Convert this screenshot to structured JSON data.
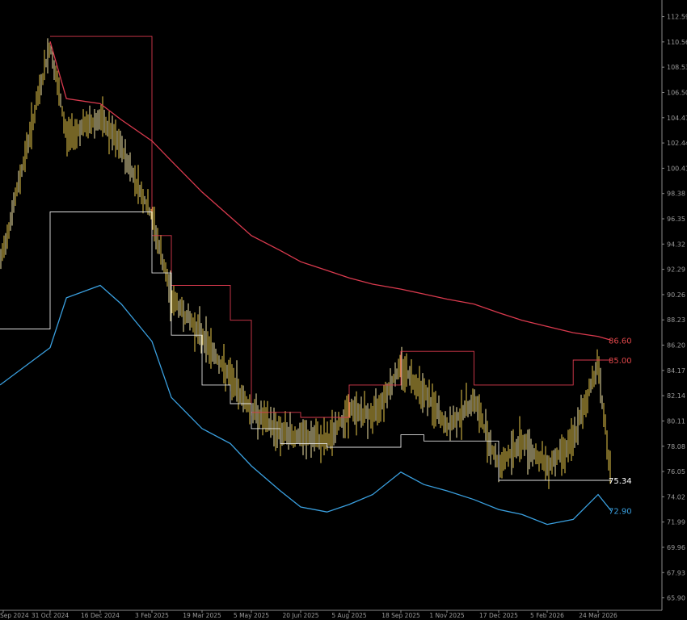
{
  "chart_data": {
    "type": "line",
    "title": "",
    "xlabel": "",
    "ylabel": "",
    "ylim": [
      64.9,
      113.6
    ],
    "grid": false,
    "y_ticks": [
      "112.59",
      "110.56",
      "108.53",
      "106.50",
      "104.47",
      "102.44",
      "100.41",
      "98.38",
      "96.35",
      "94.32",
      "92.29",
      "90.26",
      "88.23",
      "86.20",
      "84.17",
      "82.14",
      "80.11",
      "78.08",
      "76.05",
      "74.02",
      "71.99",
      "69.96",
      "67.93",
      "65.90"
    ],
    "x_ticks": [
      "Sep 2024",
      "31 Oct 2024",
      "16 Dec 2024",
      "3 Feb 2025",
      "19 Mar 2025",
      "5 May 2025",
      "20 Jun 2025",
      "5 Aug 2025",
      "18 Sep 2025",
      "1 Nov 2025",
      "17 Dec 2025",
      "5 Feb 2026",
      "24 Mar 2026"
    ],
    "x": [
      "2024-09-14",
      "2024-10-31",
      "2024-11-15",
      "2024-12-16",
      "2025-01-05",
      "2025-02-03",
      "2025-02-20",
      "2025-03-19",
      "2025-04-15",
      "2025-05-05",
      "2025-06-01",
      "2025-06-20",
      "2025-07-15",
      "2025-08-05",
      "2025-08-25",
      "2025-09-18",
      "2025-10-10",
      "2025-11-01",
      "2025-11-25",
      "2025-12-17",
      "2026-01-10",
      "2026-02-05",
      "2026-03-01",
      "2026-03-24",
      "2026-04-05"
    ],
    "series": [
      {
        "color": "#e8c84a",
        "values": [
          92.6,
          110.3,
          103.0,
          104.4,
          102.0,
          96.5,
          90.0,
          87.0,
          83.5,
          81.0,
          79.2,
          78.8,
          78.5,
          81.0,
          80.5,
          84.5,
          82.5,
          79.5,
          81.8,
          76.5,
          78.5,
          76.5,
          78.5,
          84.8,
          75.34
        ]
      },
      {
        "color": "#d93a4e",
        "values": [
          null,
          110.6,
          106.0,
          105.6,
          104.3,
          102.6,
          101.0,
          98.5,
          96.5,
          95.0,
          93.8,
          92.9,
          92.2,
          91.6,
          91.1,
          90.7,
          90.3,
          89.9,
          89.5,
          88.8,
          88.2,
          87.7,
          87.2,
          86.9,
          86.6
        ]
      },
      {
        "color": "#3aa0e0",
        "values": [
          83.0,
          86.0,
          90.0,
          91.0,
          89.5,
          86.5,
          82.0,
          79.5,
          78.3,
          76.5,
          74.5,
          73.2,
          72.8,
          73.4,
          74.2,
          76.0,
          75.0,
          74.5,
          73.8,
          73.0,
          72.6,
          71.8,
          72.2,
          74.2,
          72.9
        ]
      },
      {
        "color": "#d93a4e",
        "values": [
          null,
          111.0,
          111.0,
          111.0,
          111.0,
          95.0,
          91.0,
          91.0,
          88.2,
          80.8,
          80.8,
          80.4,
          80.4,
          83.0,
          83.0,
          85.7,
          85.7,
          85.7,
          83.0,
          83.0,
          83.0,
          83.0,
          85.0,
          85.0,
          85.0
        ]
      },
      {
        "color": "#e0e0e0",
        "values": [
          87.5,
          96.9,
          96.9,
          96.9,
          96.9,
          92.0,
          87.0,
          83.0,
          81.5,
          79.5,
          78.3,
          78.3,
          78.0,
          78.0,
          78.0,
          79.0,
          78.5,
          78.5,
          78.5,
          75.34,
          75.34,
          75.34,
          75.34,
          75.34,
          75.34
        ]
      }
    ],
    "last_labels": [
      {
        "text": "86.60",
        "value": 86.6,
        "color": "#e0474a"
      },
      {
        "text": "85.00",
        "value": 85.0,
        "color": "#e0474a"
      },
      {
        "text": "75.34",
        "value": 75.34,
        "color": "#ffffff"
      },
      {
        "text": "72.90",
        "value": 72.9,
        "color": "#3aa0e0"
      }
    ]
  }
}
